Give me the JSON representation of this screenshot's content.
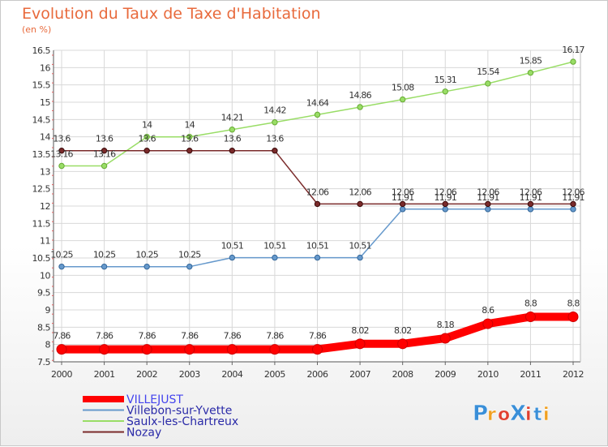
{
  "chart_data": {
    "type": "line",
    "title": "Evolution du Taux de Taxe d'Habitation",
    "subtitle": "(en %)",
    "x": [
      "2000",
      "2001",
      "2002",
      "2003",
      "2004",
      "2005",
      "2006",
      "2007",
      "2008",
      "2009",
      "2010",
      "2011",
      "2012"
    ],
    "ylim": [
      7.5,
      16.5
    ],
    "yticks": [
      "7.5",
      "8",
      "8.5",
      "9",
      "9.5",
      "10",
      "10.5",
      "11",
      "11.5",
      "12",
      "12.5",
      "13",
      "13.5",
      "14",
      "14.5",
      "15",
      "15.5",
      "16",
      "16.5"
    ],
    "grid": true,
    "legend": "bottom-left",
    "series": [
      {
        "name": "VILLEJUST",
        "color": "#ff0000",
        "width": 10,
        "values": [
          7.86,
          7.86,
          7.86,
          7.86,
          7.86,
          7.86,
          7.86,
          8.02,
          8.02,
          8.18,
          8.6,
          8.8,
          8.8
        ],
        "labels": [
          "7.86",
          "7.86",
          "7.86",
          "7.86",
          "7.86",
          "7.86",
          "7.86",
          "8.02",
          "8.02",
          "8.18",
          "8.6",
          "8.8",
          "8.8"
        ]
      },
      {
        "name": "Villebon-sur-Yvette",
        "color": "#6699cc",
        "width": 1.5,
        "values": [
          10.25,
          10.25,
          10.25,
          10.25,
          10.51,
          10.51,
          10.51,
          10.51,
          11.91,
          11.91,
          11.91,
          11.91,
          11.91
        ],
        "labels": [
          "10.25",
          "10.25",
          "10.25",
          "10.25",
          "10.51",
          "10.51",
          "10.51",
          "10.51",
          "11.91",
          "11.91",
          "11.91",
          "11.91",
          "11.91"
        ]
      },
      {
        "name": "Saulx-les-Chartreux",
        "color": "#99dd66",
        "width": 1.5,
        "values": [
          13.16,
          13.16,
          14,
          14,
          14.21,
          14.42,
          14.64,
          14.86,
          15.08,
          15.31,
          15.54,
          15.85,
          16.17
        ],
        "labels": [
          "13.16",
          "13.16",
          "14",
          "14",
          "14.21",
          "14.42",
          "14.64",
          "14.86",
          "15.08",
          "15.31",
          "15.54",
          "15.85",
          "16.17"
        ]
      },
      {
        "name": "Nozay",
        "color": "#7a2a2a",
        "width": 1.5,
        "values": [
          13.6,
          13.6,
          13.6,
          13.6,
          13.6,
          13.6,
          12.06,
          12.06,
          12.06,
          12.06,
          12.06,
          12.06,
          12.06
        ],
        "labels": [
          "13.6",
          "13.6",
          "13.6",
          "13.6",
          "13.6",
          "13.6",
          "12.06",
          "12.06",
          "12.06",
          "12.06",
          "12.06",
          "12.06",
          "12.06"
        ]
      }
    ]
  },
  "logo": {
    "text": "ProXiti"
  }
}
